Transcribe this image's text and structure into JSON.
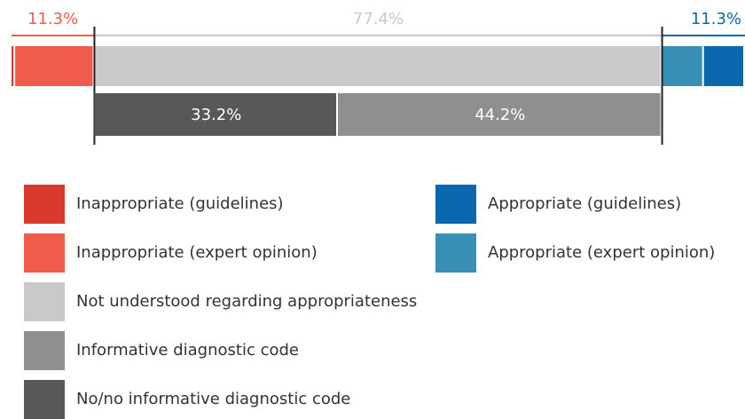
{
  "chart_data": {
    "type": "stacked-bar",
    "series": [
      {
        "name": "Inappropriate (guidelines)",
        "color": "#d93a2f",
        "values": [
          0.5
        ]
      },
      {
        "name": "Inappropriate (expert opinion)",
        "color": "#f15b4b",
        "values": [
          10.8
        ]
      },
      {
        "name": "Not understood regarding appropriateness",
        "color": "#c9c9cb",
        "values": [
          77.4
        ]
      },
      {
        "name": "Appropriate (expert opinion)",
        "color": "#3990b7",
        "values": [
          5.7
        ]
      },
      {
        "name": "Appropriate (guidelines)",
        "color": "#0b67ae",
        "values": [
          5.6
        ]
      }
    ],
    "group_values": [
      11.3,
      77.4,
      11.3
    ],
    "group_value_labels": [
      "11.3%",
      "77.4%",
      "11.3%"
    ],
    "group_colors": [
      "#f15b4b",
      "#c9c9cb",
      "#0b67ae"
    ],
    "breakdown": [
      {
        "name": "No/no informative diagnostic code",
        "color": "#58585a",
        "value": 33.2,
        "value_label": "33.2%"
      },
      {
        "name": "Informative diagnostic code",
        "color": "#8f8f91",
        "value": 44.2,
        "value_label": "44.2%"
      }
    ],
    "xlim": [
      0,
      100
    ]
  }
}
